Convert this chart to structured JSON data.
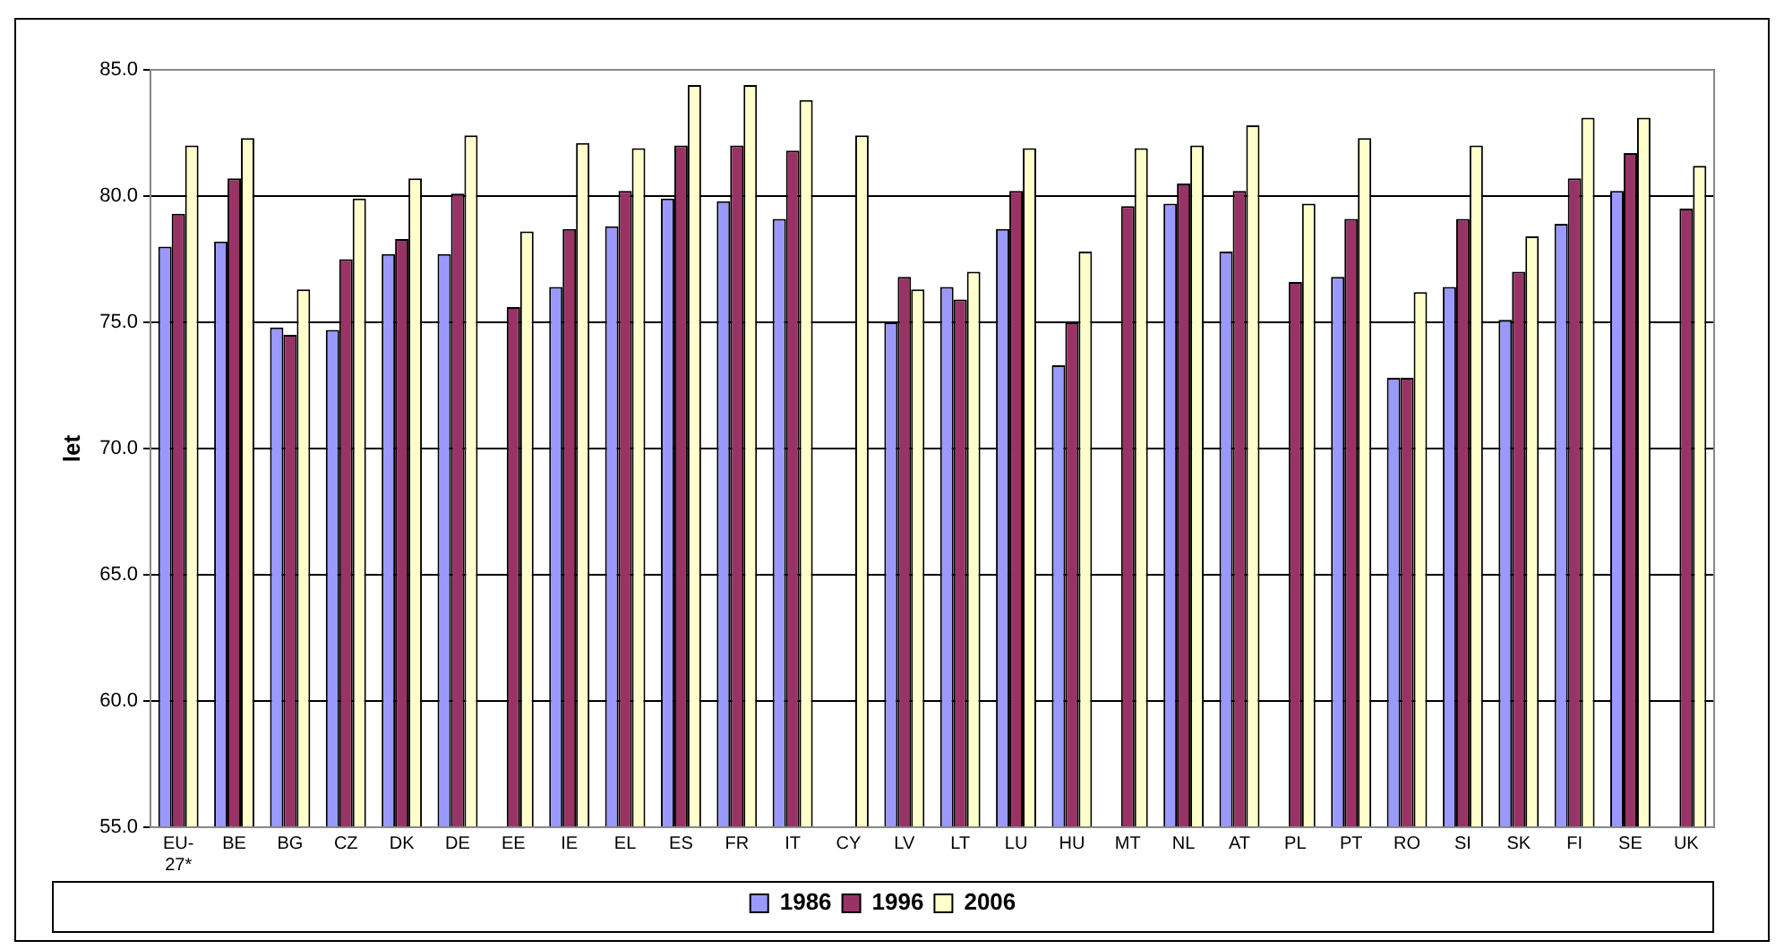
{
  "chart_data": {
    "type": "bar",
    "ylabel": "let",
    "categories": [
      "EU-27*",
      "BE",
      "BG",
      "CZ",
      "DK",
      "DE",
      "EE",
      "IE",
      "EL",
      "ES",
      "FR",
      "IT",
      "CY",
      "LV",
      "LT",
      "LU",
      "HU",
      "MT",
      "NL",
      "AT",
      "PL",
      "PT",
      "RO",
      "SI",
      "SK",
      "FI",
      "SE",
      "UK"
    ],
    "series": [
      {
        "name": "1986",
        "color": "#9999ff",
        "values": [
          78.0,
          78.2,
          74.8,
          74.7,
          77.7,
          77.7,
          null,
          76.4,
          78.8,
          79.9,
          79.8,
          79.1,
          null,
          75.0,
          76.4,
          78.7,
          73.3,
          null,
          79.7,
          77.8,
          null,
          76.8,
          72.8,
          76.4,
          75.1,
          78.9,
          80.2,
          null
        ]
      },
      {
        "name": "1996",
        "color": "#993366",
        "values": [
          79.3,
          80.7,
          74.5,
          77.5,
          78.3,
          80.1,
          75.6,
          78.7,
          80.2,
          82.0,
          82.0,
          81.8,
          null,
          76.8,
          75.9,
          80.2,
          75.0,
          79.6,
          80.5,
          80.2,
          76.6,
          79.1,
          72.8,
          79.1,
          77.0,
          80.7,
          81.7,
          79.5
        ]
      },
      {
        "name": "2006",
        "color": "#ffffcc",
        "values": [
          82.0,
          82.3,
          76.3,
          79.9,
          80.7,
          82.4,
          78.6,
          82.1,
          81.9,
          84.4,
          84.4,
          83.8,
          82.4,
          76.3,
          77.0,
          81.9,
          77.8,
          81.9,
          82.0,
          82.8,
          79.7,
          82.3,
          76.2,
          82.0,
          78.4,
          83.1,
          83.1,
          81.2
        ]
      }
    ],
    "ylim": [
      55,
      85
    ],
    "yticks": [
      {
        "value": 55,
        "label": "55.0"
      },
      {
        "value": 60,
        "label": "60.0"
      },
      {
        "value": 65,
        "label": "65.0"
      },
      {
        "value": 70,
        "label": "70.0"
      },
      {
        "value": 75,
        "label": "75.0"
      },
      {
        "value": 80,
        "label": "80.0"
      },
      {
        "value": 85,
        "label": "85.0"
      }
    ],
    "grid": "y",
    "legend": "bottom"
  }
}
